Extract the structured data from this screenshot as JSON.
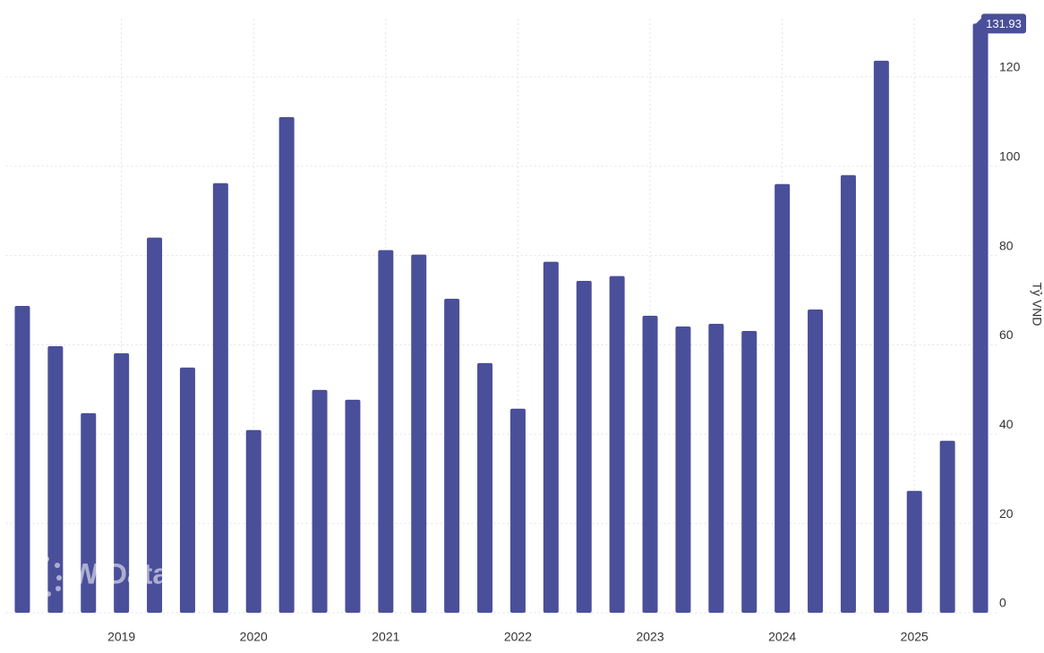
{
  "chart_data": {
    "type": "bar",
    "categories": [
      null,
      null,
      null,
      "2019",
      null,
      null,
      null,
      "2020",
      null,
      null,
      null,
      "2021",
      null,
      null,
      null,
      "2022",
      null,
      null,
      null,
      "2023",
      null,
      null,
      null,
      "2024",
      null,
      null,
      null,
      "2025",
      null,
      null
    ],
    "values": [
      68.7,
      59.7,
      44.7,
      58.1,
      84.0,
      54.9,
      96.2,
      40.9,
      111.0,
      49.9,
      47.7,
      81.2,
      80.2,
      70.3,
      55.9,
      45.7,
      78.6,
      74.3,
      75.4,
      66.5,
      64.1,
      64.7,
      63.1,
      96.0,
      67.9,
      98.0,
      123.6,
      27.3,
      38.5,
      131.93
    ],
    "color": "#4a4f9a",
    "ylim": [
      0,
      133
    ],
    "yticks": [
      0,
      20,
      40,
      60,
      80,
      100,
      120
    ],
    "y_axis_label": "Tỷ VND",
    "y_axis_side": "right",
    "grid": true,
    "watermark": "WiData"
  }
}
